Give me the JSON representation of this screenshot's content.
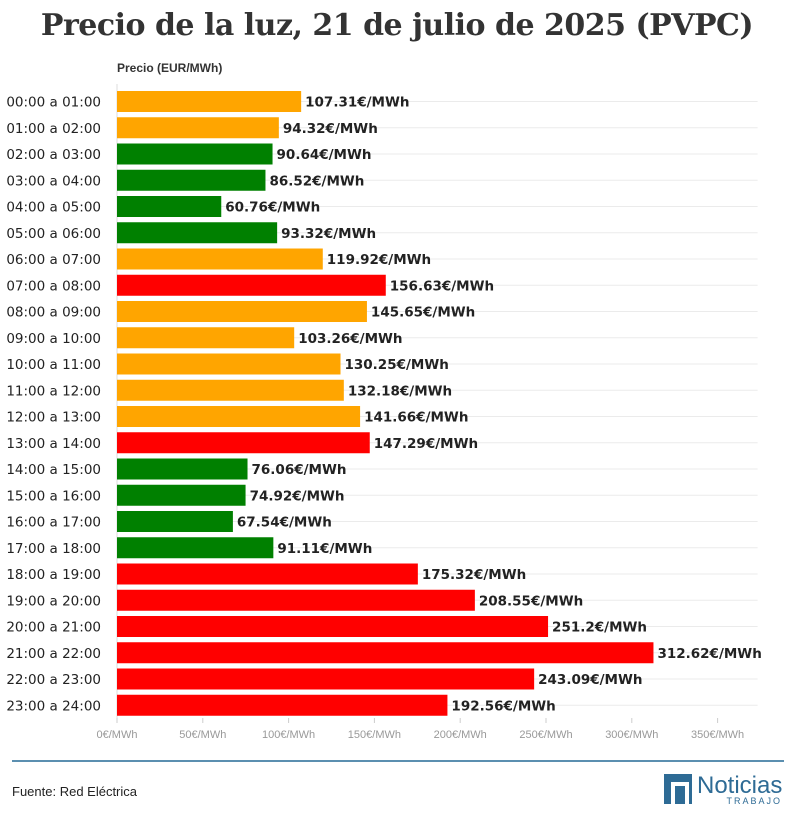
{
  "chart_data": {
    "type": "bar",
    "orientation": "horizontal",
    "title": "Precio de la luz, 21 de julio de 2025 (PVPC)",
    "xlabel": "Precio (EUR/MWh)",
    "ylabel": "",
    "xlim": [
      0,
      350
    ],
    "xticks": [
      0,
      50,
      100,
      150,
      200,
      250,
      300,
      350
    ],
    "xtick_labels": [
      "0€/MWh",
      "50€/MWh",
      "100€/MWh",
      "150€/MWh",
      "200€/MWh",
      "250€/MWh",
      "300€/MWh",
      "350€/MWh"
    ],
    "grid": true,
    "value_suffix": "€/MWh",
    "categories": [
      "00:00 a 01:00",
      "01:00 a 02:00",
      "02:00 a 03:00",
      "03:00 a 04:00",
      "04:00 a 05:00",
      "05:00 a 06:00",
      "06:00 a 07:00",
      "07:00 a 08:00",
      "08:00 a 09:00",
      "09:00 a 10:00",
      "10:00 a 11:00",
      "11:00 a 12:00",
      "12:00 a 13:00",
      "13:00 a 14:00",
      "14:00 a 15:00",
      "15:00 a 16:00",
      "16:00 a 17:00",
      "17:00 a 18:00",
      "18:00 a 19:00",
      "19:00 a 20:00",
      "20:00 a 21:00",
      "21:00 a 22:00",
      "22:00 a 23:00",
      "23:00 a 24:00"
    ],
    "values": [
      107.31,
      94.32,
      90.64,
      86.52,
      60.76,
      93.32,
      119.92,
      156.63,
      145.65,
      103.26,
      130.25,
      132.18,
      141.66,
      147.29,
      76.06,
      74.92,
      67.54,
      91.11,
      175.32,
      208.55,
      251.2,
      312.62,
      243.09,
      192.56
    ],
    "value_labels": [
      "107.31€/MWh",
      "94.32€/MWh",
      "90.64€/MWh",
      "86.52€/MWh",
      "60.76€/MWh",
      "93.32€/MWh",
      "119.92€/MWh",
      "156.63€/MWh",
      "145.65€/MWh",
      "103.26€/MWh",
      "130.25€/MWh",
      "132.18€/MWh",
      "141.66€/MWh",
      "147.29€/MWh",
      "76.06€/MWh",
      "74.92€/MWh",
      "67.54€/MWh",
      "91.11€/MWh",
      "175.32€/MWh",
      "208.55€/MWh",
      "251.2€/MWh",
      "312.62€/MWh",
      "243.09€/MWh",
      "192.56€/MWh"
    ],
    "levels": [
      "medio",
      "medio",
      "bajo",
      "bajo",
      "bajo",
      "bajo",
      "medio",
      "alto",
      "medio",
      "medio",
      "medio",
      "medio",
      "medio",
      "alto",
      "bajo",
      "bajo",
      "bajo",
      "bajo",
      "alto",
      "alto",
      "alto",
      "alto",
      "alto",
      "alto"
    ],
    "level_colors": {
      "bajo": "#008000",
      "medio": "#ffa500",
      "alto": "#ff0000"
    }
  },
  "footer": {
    "source": "Fuente: Red Eléctrica",
    "logo_name": "Noticias",
    "logo_sub": "TRABAJO",
    "accent_color": "#2e6b95"
  }
}
